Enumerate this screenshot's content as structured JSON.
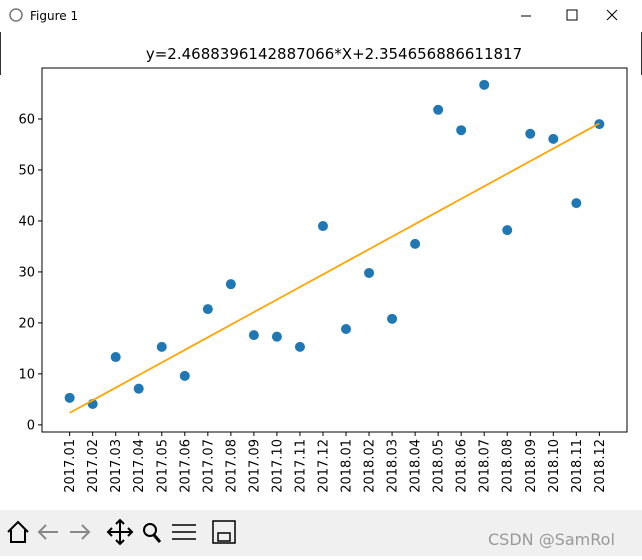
{
  "window": {
    "title": "Figure 1"
  },
  "chart_data": {
    "type": "scatter",
    "title": "y=2.4688396142887066*X+2.354656886611817",
    "categories": [
      "2017.01",
      "2017.02",
      "2017.03",
      "2017.04",
      "2017.05",
      "2017.06",
      "2017.07",
      "2017.08",
      "2017.09",
      "2017.10",
      "2017.11",
      "2017.12",
      "2018.01",
      "2018.02",
      "2018.03",
      "2018.04",
      "2018.05",
      "2018.06",
      "2018.07",
      "2018.08",
      "2018.09",
      "2018.10",
      "2018.11",
      "2018.12"
    ],
    "series": [
      {
        "type": "scatter",
        "color": "#1f77b4",
        "values": [
          5.3,
          4.1,
          13.3,
          7.1,
          15.3,
          9.6,
          22.7,
          27.6,
          17.6,
          17.3,
          15.3,
          39.0,
          18.8,
          29.8,
          20.8,
          35.5,
          61.8,
          57.8,
          66.7,
          38.2,
          57.1,
          56.1,
          43.5,
          59.0
        ]
      },
      {
        "type": "line",
        "color": "#ffa500",
        "values": [
          2.35,
          4.82,
          7.29,
          9.76,
          12.23,
          14.7,
          17.17,
          19.64,
          22.11,
          24.57,
          27.04,
          29.51,
          31.98,
          34.45,
          36.92,
          39.39,
          41.86,
          44.33,
          46.8,
          49.26,
          51.73,
          54.2,
          56.67,
          59.14
        ]
      }
    ],
    "ylim": [
      -1.4,
      70
    ],
    "yticks": [
      0,
      10,
      20,
      30,
      40,
      50,
      60
    ]
  },
  "watermark": "CSDN @SamRol"
}
